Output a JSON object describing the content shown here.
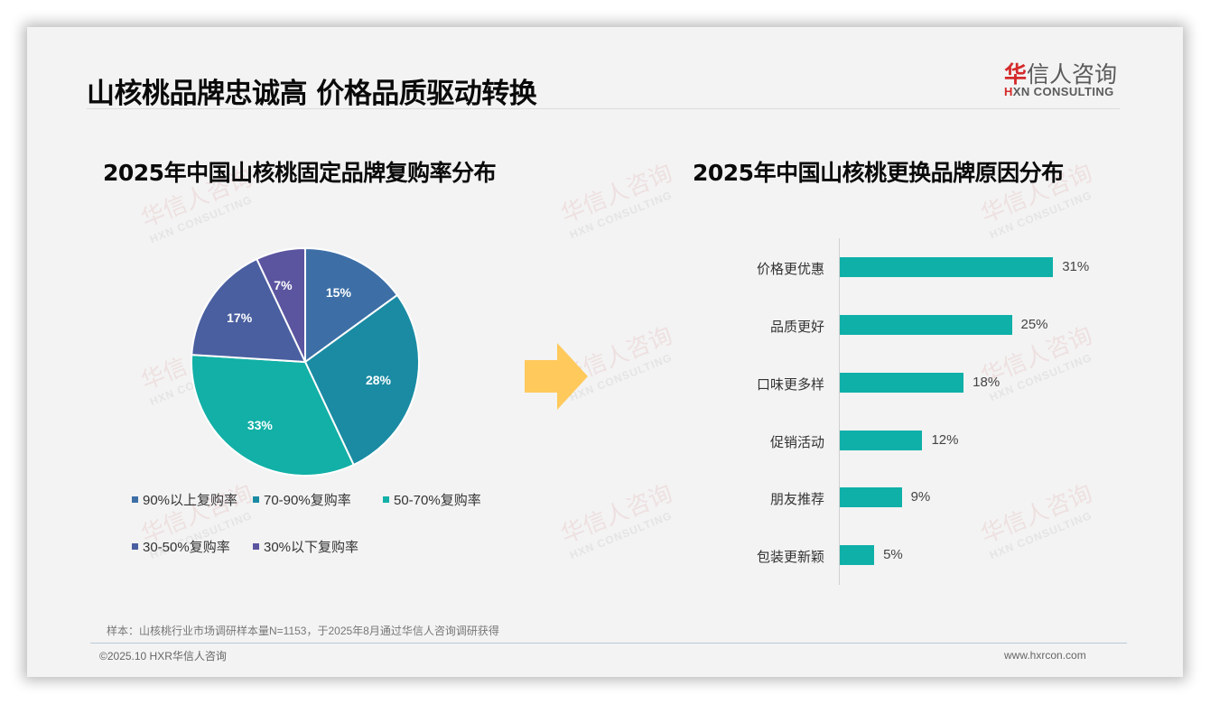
{
  "header": {
    "title": "山核桃品牌忠诚高 价格品质驱动转换",
    "logo": {
      "cn_accent": "华",
      "cn_rest": "信人咨询",
      "en_accent": "H",
      "en_rest": "XN CONSULTING"
    }
  },
  "watermark": {
    "cn": "华信人咨询",
    "en": "HXN CONSULTING"
  },
  "left_panel": {
    "title": "2025年中国山核桃固定品牌复购率分布"
  },
  "right_panel": {
    "title": "2025年中国山核桃更换品牌原因分布"
  },
  "arrow": {
    "icon": "right-arrow-icon",
    "color": "#ffc95c"
  },
  "chart_data": [
    {
      "type": "pie",
      "title": "2025年中国山核桃固定品牌复购率分布",
      "categories": [
        "90%以上复购率",
        "70-90%复购率",
        "50-70%复购率",
        "30-50%复购率",
        "30%以下复购率"
      ],
      "values": [
        15,
        28,
        33,
        17,
        7
      ],
      "labels": [
        "15%",
        "28%",
        "33%",
        "17%",
        "7%"
      ],
      "colors": [
        "#3d6fa6",
        "#1a8ba3",
        "#12b0a6",
        "#4a5fa0",
        "#5b55a0"
      ],
      "start_angle": "12 o'clock, clockwise",
      "legend_position": "bottom"
    },
    {
      "type": "bar",
      "orientation": "horizontal",
      "title": "2025年中国山核桃更换品牌原因分布",
      "categories": [
        "价格更优惠",
        "品质更好",
        "口味更多样",
        "促销活动",
        "朋友推荐",
        "包装更新颖"
      ],
      "values": [
        31,
        25,
        18,
        12,
        9,
        5
      ],
      "labels": [
        "31%",
        "25%",
        "18%",
        "12%",
        "9%",
        "5%"
      ],
      "color": "#0eb0a8",
      "xlim": [
        0,
        35
      ],
      "grid": false,
      "xlabel": "",
      "ylabel": ""
    }
  ],
  "footer": {
    "note": "样本：山核桃行业市场调研样本量N=1153，于2025年8月通过华信人咨询调研获得",
    "copyright": "©2025.10 HXR华信人咨询",
    "website": "www.hxrcon.com"
  }
}
